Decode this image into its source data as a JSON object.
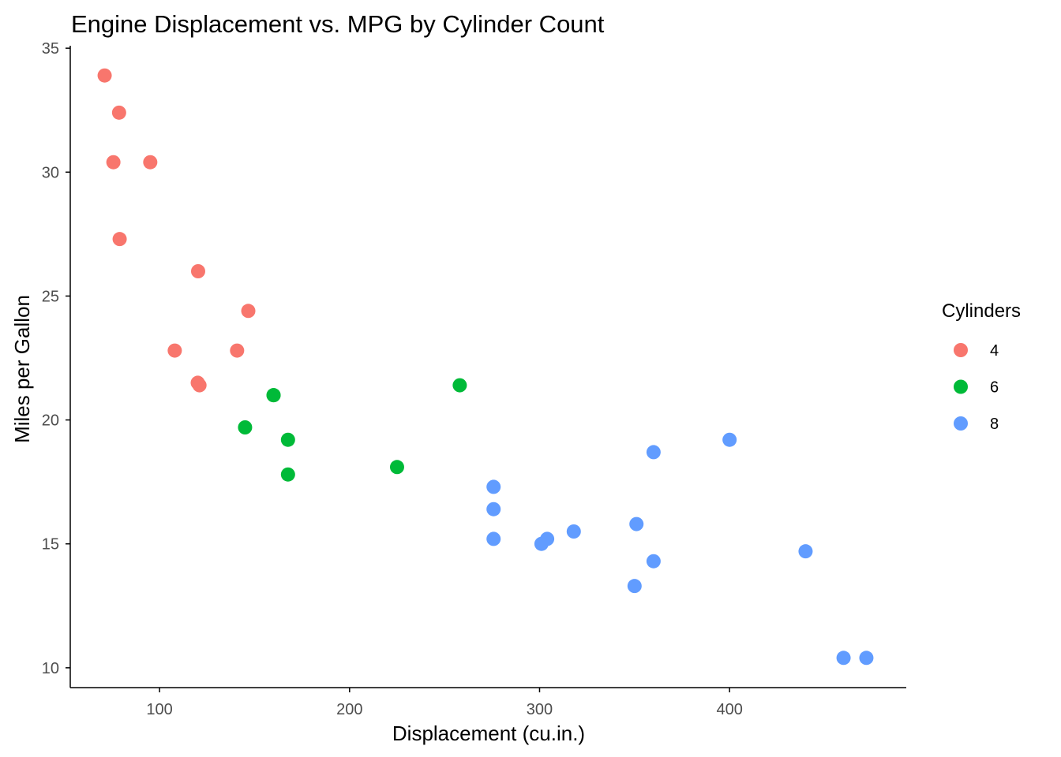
{
  "chart_data": {
    "type": "scatter",
    "title": "Engine Displacement vs. MPG by Cylinder Count",
    "xlabel": "Displacement (cu.in.)",
    "ylabel": "Miles per Gallon",
    "xlim": [
      53,
      493
    ],
    "ylim": [
      9.2,
      35.1
    ],
    "x_ticks": [
      100,
      200,
      300,
      400
    ],
    "y_ticks": [
      10,
      15,
      20,
      25,
      30,
      35
    ],
    "grid": false,
    "legend": {
      "title": "Cylinders",
      "position": "right"
    },
    "series": [
      {
        "name": "4",
        "color": "#F8766D",
        "points": [
          {
            "x": 71.1,
            "y": 33.9
          },
          {
            "x": 78.7,
            "y": 32.4
          },
          {
            "x": 75.7,
            "y": 30.4
          },
          {
            "x": 95.1,
            "y": 30.4
          },
          {
            "x": 79.0,
            "y": 27.3
          },
          {
            "x": 120.3,
            "y": 26.0
          },
          {
            "x": 146.7,
            "y": 24.4
          },
          {
            "x": 108.0,
            "y": 22.8
          },
          {
            "x": 140.8,
            "y": 22.8
          },
          {
            "x": 120.1,
            "y": 21.5
          },
          {
            "x": 121.0,
            "y": 21.4
          }
        ]
      },
      {
        "name": "6",
        "color": "#00BA38",
        "points": [
          {
            "x": 258.0,
            "y": 21.4
          },
          {
            "x": 160.0,
            "y": 21.0
          },
          {
            "x": 160.0,
            "y": 21.0
          },
          {
            "x": 145.0,
            "y": 19.7
          },
          {
            "x": 167.6,
            "y": 19.2
          },
          {
            "x": 225.0,
            "y": 18.1
          },
          {
            "x": 167.6,
            "y": 17.8
          }
        ]
      },
      {
        "name": "8",
        "color": "#619CFF",
        "points": [
          {
            "x": 400.0,
            "y": 19.2
          },
          {
            "x": 360.0,
            "y": 18.7
          },
          {
            "x": 275.8,
            "y": 17.3
          },
          {
            "x": 275.8,
            "y": 16.4
          },
          {
            "x": 351.0,
            "y": 15.8
          },
          {
            "x": 318.0,
            "y": 15.5
          },
          {
            "x": 304.0,
            "y": 15.2
          },
          {
            "x": 275.8,
            "y": 15.2
          },
          {
            "x": 301.0,
            "y": 15.0
          },
          {
            "x": 440.0,
            "y": 14.7
          },
          {
            "x": 360.0,
            "y": 14.3
          },
          {
            "x": 350.0,
            "y": 13.3
          },
          {
            "x": 472.0,
            "y": 10.4
          },
          {
            "x": 460.0,
            "y": 10.4
          }
        ]
      }
    ]
  }
}
